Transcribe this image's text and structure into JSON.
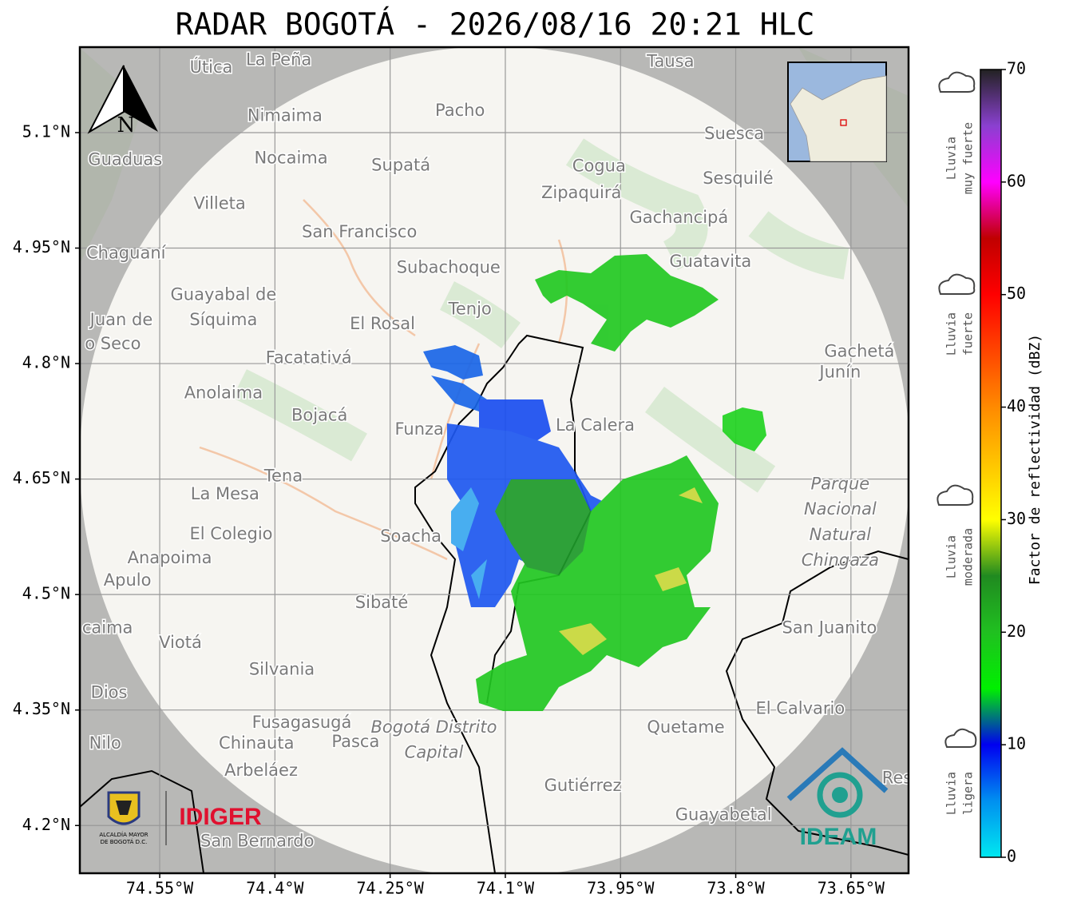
{
  "title": "RADAR BOGOTÁ - 2026/08/16 20:21 HLC",
  "map": {
    "xlim": [
      -74.654,
      -73.575
    ],
    "ylim": [
      4.138,
      5.211
    ],
    "xticks": [
      {
        "value": -74.55,
        "label": "74.55°W"
      },
      {
        "value": -74.4,
        "label": "74.4°W"
      },
      {
        "value": -74.25,
        "label": "74.25°W"
      },
      {
        "value": -74.1,
        "label": "74.1°W"
      },
      {
        "value": -73.95,
        "label": "73.95°W"
      },
      {
        "value": -73.8,
        "label": "73.8°W"
      },
      {
        "value": -73.65,
        "label": "73.65°W"
      }
    ],
    "yticks": [
      {
        "value": 5.1,
        "label": "5.1°N"
      },
      {
        "value": 4.95,
        "label": "4.95°N"
      },
      {
        "value": 4.8,
        "label": "4.8°N"
      },
      {
        "value": 4.65,
        "label": "4.65°N"
      },
      {
        "value": 4.5,
        "label": "4.5°N"
      },
      {
        "value": 4.35,
        "label": "4.35°N"
      },
      {
        "value": 4.2,
        "label": "4.2°N"
      }
    ],
    "places": [
      {
        "name": "Útica",
        "lon": -74.483,
        "lat": 5.184
      },
      {
        "name": "La Peña",
        "lon": -74.395,
        "lat": 5.194
      },
      {
        "name": "Tausa",
        "lon": -73.885,
        "lat": 5.192
      },
      {
        "name": "Pacho",
        "lon": -74.159,
        "lat": 5.128
      },
      {
        "name": "Nimaima",
        "lon": -74.387,
        "lat": 5.121
      },
      {
        "name": "Guaduas",
        "lon": -74.595,
        "lat": 5.064
      },
      {
        "name": "Nocaima",
        "lon": -74.379,
        "lat": 5.066
      },
      {
        "name": "Supatá",
        "lon": -74.236,
        "lat": 5.057
      },
      {
        "name": "Cogua",
        "lon": -73.978,
        "lat": 5.056
      },
      {
        "name": "Suesca",
        "lon": -73.802,
        "lat": 5.098
      },
      {
        "name": "Sesquilé",
        "lon": -73.797,
        "lat": 5.04
      },
      {
        "name": "Zipaquirá",
        "lon": -74.001,
        "lat": 5.021
      },
      {
        "name": "Villeta",
        "lon": -74.472,
        "lat": 5.007
      },
      {
        "name": "Gachancipá",
        "lon": -73.874,
        "lat": 4.989
      },
      {
        "name": "San Francisco",
        "lon": -74.29,
        "lat": 4.97
      },
      {
        "name": "Chaguaní",
        "lon": -74.594,
        "lat": 4.943
      },
      {
        "name": "Subachoque",
        "lon": -74.174,
        "lat": 4.924
      },
      {
        "name": "Guatavita",
        "lon": -73.833,
        "lat": 4.932
      },
      {
        "name": "Guayabal de",
        "lon": -74.467,
        "lat": 4.889
      },
      {
        "name": "Síquima",
        "lon": -74.467,
        "lat": 4.856
      },
      {
        "name": "Juan de",
        "lon": -74.6,
        "lat": 4.856
      },
      {
        "name": "o Seco",
        "lon": -74.611,
        "lat": 4.825
      },
      {
        "name": "Tenjo",
        "lon": -74.146,
        "lat": 4.87
      },
      {
        "name": "El Rosal",
        "lon": -74.26,
        "lat": 4.851
      },
      {
        "name": "Facatativá",
        "lon": -74.356,
        "lat": 4.807
      },
      {
        "name": "Gachetá",
        "lon": -73.639,
        "lat": 4.815
      },
      {
        "name": "Junín",
        "lon": -73.664,
        "lat": 4.788
      },
      {
        "name": "Anolaima",
        "lon": -74.467,
        "lat": 4.761
      },
      {
        "name": "Bojacá",
        "lon": -74.342,
        "lat": 4.732
      },
      {
        "name": "Funza",
        "lon": -74.212,
        "lat": 4.714
      },
      {
        "name": "La Calera",
        "lon": -73.983,
        "lat": 4.719
      },
      {
        "name": "Tena",
        "lon": -74.389,
        "lat": 4.653
      },
      {
        "name": "La Mesa",
        "lon": -74.465,
        "lat": 4.63
      },
      {
        "name": "El Colegio",
        "lon": -74.457,
        "lat": 4.578
      },
      {
        "name": "Soacha",
        "lon": -74.223,
        "lat": 4.575
      },
      {
        "name": "Anapoima",
        "lon": -74.537,
        "lat": 4.547
      },
      {
        "name": "Apulo",
        "lon": -74.592,
        "lat": 4.518
      },
      {
        "name": "Sibaté",
        "lon": -74.261,
        "lat": 4.489
      },
      {
        "name": "Parque",
        "lon": -73.664,
        "lat": 4.643,
        "style": "park"
      },
      {
        "name": "Nacional",
        "lon": -73.664,
        "lat": 4.61,
        "style": "park"
      },
      {
        "name": "Natural",
        "lon": -73.664,
        "lat": 4.577,
        "style": "park"
      },
      {
        "name": "Chingaza",
        "lon": -73.664,
        "lat": 4.544,
        "style": "park"
      },
      {
        "name": "San Juanito",
        "lon": -73.678,
        "lat": 4.456
      },
      {
        "name": "caima",
        "lon": -74.618,
        "lat": 4.456
      },
      {
        "name": "Viotá",
        "lon": -74.523,
        "lat": 4.437
      },
      {
        "name": "Silvania",
        "lon": -74.391,
        "lat": 4.402
      },
      {
        "name": "Dios",
        "lon": -74.616,
        "lat": 4.372
      },
      {
        "name": "El Calvario",
        "lon": -73.716,
        "lat": 4.351
      },
      {
        "name": "Fusagasugá",
        "lon": -74.365,
        "lat": 4.333
      },
      {
        "name": "Quetame",
        "lon": -73.865,
        "lat": 4.327
      },
      {
        "name": "Bogotá Distrito",
        "lon": -74.193,
        "lat": 4.327,
        "style": "district"
      },
      {
        "name": "Capital",
        "lon": -74.193,
        "lat": 4.294,
        "style": "district"
      },
      {
        "name": "Nilo",
        "lon": -74.621,
        "lat": 4.306
      },
      {
        "name": "Chinauta",
        "lon": -74.424,
        "lat": 4.306
      },
      {
        "name": "Pasca",
        "lon": -74.295,
        "lat": 4.308
      },
      {
        "name": "Arbeláez",
        "lon": -74.418,
        "lat": 4.271
      },
      {
        "name": "Gutiérrez",
        "lon": -73.999,
        "lat": 4.251
      },
      {
        "name": "Guayabetal",
        "lon": -73.816,
        "lat": 4.213
      },
      {
        "name": "San Bernardo",
        "lon": -74.423,
        "lat": 4.179
      },
      {
        "name": "Res",
        "lon": -73.59,
        "lat": 4.261
      }
    ]
  },
  "north": "N",
  "colorbar": {
    "label": "Factor de reflectividad (dBZ)",
    "range": [
      0,
      70
    ],
    "ticks": [
      0,
      10,
      20,
      30,
      40,
      50,
      60,
      70
    ],
    "stops": [
      {
        "value": 0,
        "color": "#00e8f0"
      },
      {
        "value": 5,
        "color": "#0090f0"
      },
      {
        "value": 10,
        "color": "#0000f0"
      },
      {
        "value": 15,
        "color": "#00f000"
      },
      {
        "value": 20,
        "color": "#20c020"
      },
      {
        "value": 25,
        "color": "#208a20"
      },
      {
        "value": 30,
        "color": "#ffff00"
      },
      {
        "value": 40,
        "color": "#ff8a00"
      },
      {
        "value": 50,
        "color": "#ff0000"
      },
      {
        "value": 55,
        "color": "#c00000"
      },
      {
        "value": 60,
        "color": "#ff00ff"
      },
      {
        "value": 65,
        "color": "#8a40d0"
      },
      {
        "value": 70,
        "color": "#222222"
      }
    ]
  },
  "legend": [
    {
      "lines": [
        "Lluvia",
        "muy fuerte"
      ]
    },
    {
      "lines": [
        "Lluvia",
        "fuerte"
      ]
    },
    {
      "lines": [
        "Lluvia",
        "moderada"
      ]
    },
    {
      "lines": [
        "Lluvia",
        "ligera"
      ]
    }
  ],
  "logos": {
    "alcaldia": [
      "ALCALDÍA MAYOR",
      "DE BOGOTÁ D.C."
    ],
    "idiger": "IDIGER",
    "ideam": "IDEAM"
  }
}
